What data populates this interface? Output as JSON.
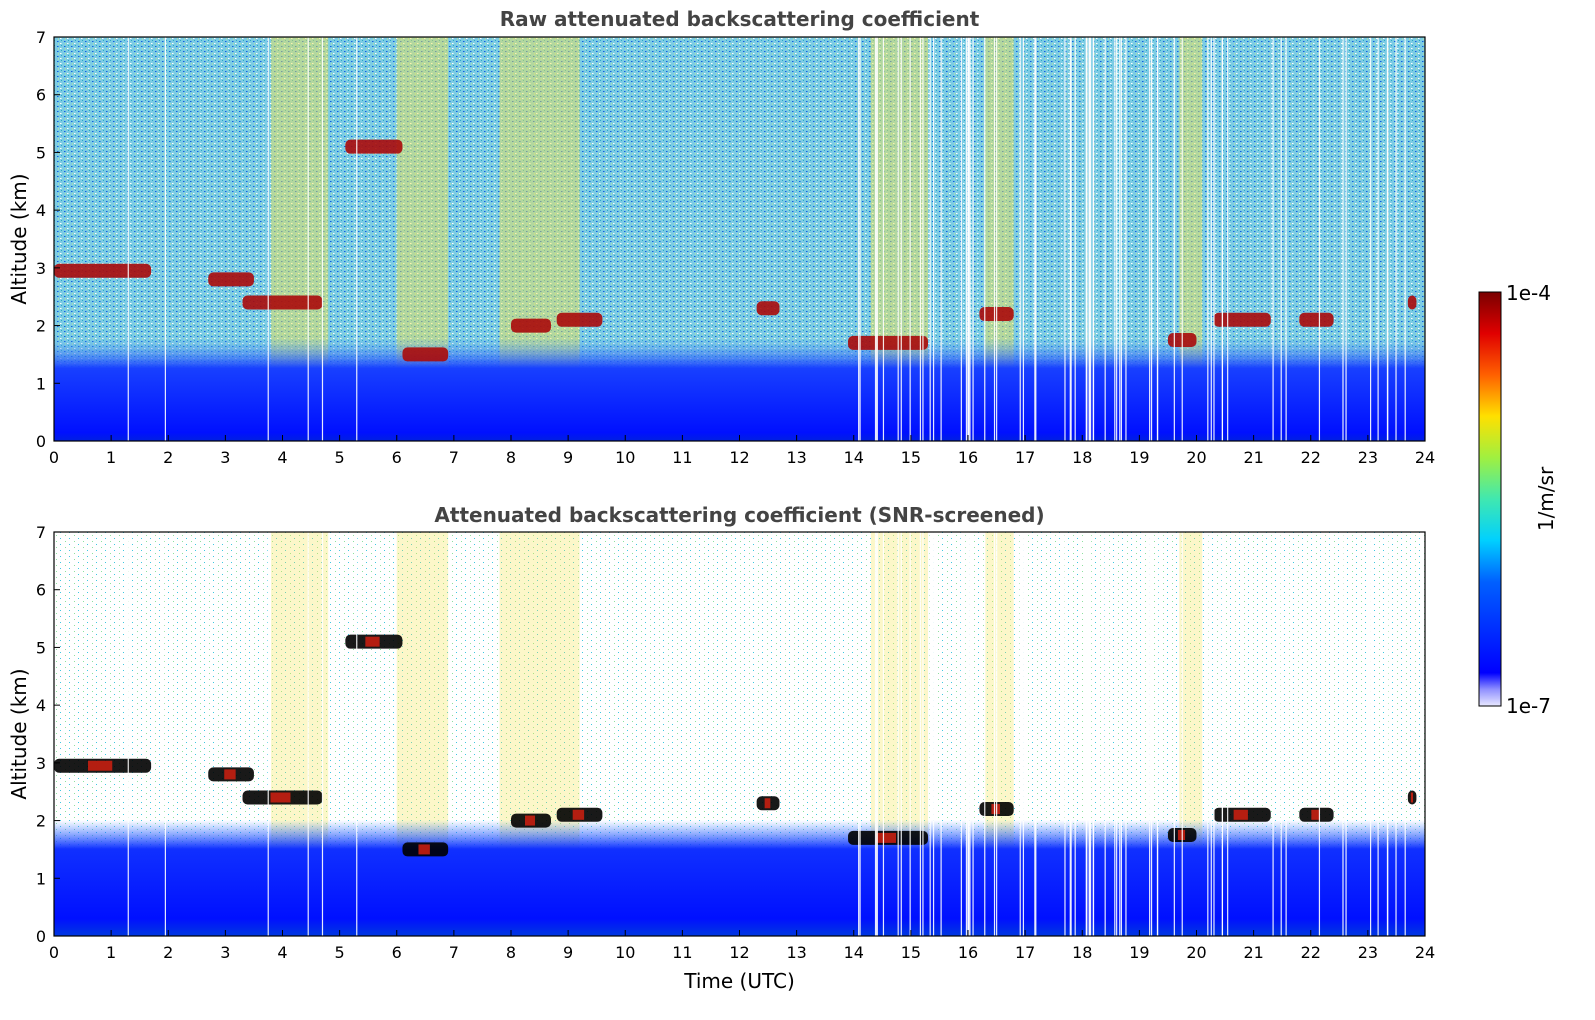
{
  "colors": {
    "background_noise": "#6ec6e0",
    "surface_layer": "#0010ff",
    "aerosol": "#f4e44c",
    "cloud": "#aa0a0a",
    "cloud_screened": "#000000"
  },
  "chart_data": [
    {
      "type": "heatmap",
      "title": "Raw attenuated backscattering coefficient",
      "xlabel": "",
      "ylabel": "Altitude (km)",
      "xlim": [
        0,
        24
      ],
      "ylim": [
        0,
        7
      ],
      "xticks": [
        "0",
        "1",
        "2",
        "3",
        "4",
        "5",
        "6",
        "7",
        "8",
        "9",
        "10",
        "11",
        "12",
        "13",
        "14",
        "15",
        "16",
        "17",
        "18",
        "19",
        "20",
        "21",
        "22",
        "23",
        "24"
      ],
      "yticks": [
        "0",
        "1",
        "2",
        "3",
        "4",
        "5",
        "6",
        "7"
      ],
      "cloud_layers": [
        {
          "t0": 0.0,
          "t1": 1.7,
          "z": 2.95
        },
        {
          "t0": 2.7,
          "t1": 3.5,
          "z": 2.8
        },
        {
          "t0": 3.3,
          "t1": 4.7,
          "z": 2.4
        },
        {
          "t0": 5.1,
          "t1": 6.1,
          "z": 5.1
        },
        {
          "t0": 6.1,
          "t1": 6.9,
          "z": 1.5
        },
        {
          "t0": 8.0,
          "t1": 8.7,
          "z": 2.0
        },
        {
          "t0": 8.8,
          "t1": 9.6,
          "z": 2.1
        },
        {
          "t0": 12.3,
          "t1": 12.7,
          "z": 2.3
        },
        {
          "t0": 13.9,
          "t1": 15.3,
          "z": 1.7
        },
        {
          "t0": 16.2,
          "t1": 16.8,
          "z": 2.2
        },
        {
          "t0": 19.5,
          "t1": 20.0,
          "z": 1.75
        },
        {
          "t0": 20.3,
          "t1": 21.3,
          "z": 2.1
        },
        {
          "t0": 21.8,
          "t1": 22.4,
          "z": 2.1
        },
        {
          "t0": 23.7,
          "t1": 23.85,
          "z": 2.4
        }
      ],
      "aerosol_plumes": [
        {
          "t0": 3.8,
          "t1": 4.8
        },
        {
          "t0": 6.0,
          "t1": 6.9
        },
        {
          "t0": 7.8,
          "t1": 9.2
        },
        {
          "t0": 14.3,
          "t1": 15.3
        },
        {
          "t0": 16.3,
          "t1": 16.8
        },
        {
          "t0": 19.7,
          "t1": 20.1
        }
      ]
    },
    {
      "type": "heatmap",
      "title": "Attenuated backscattering coefficient (SNR-screened)",
      "xlabel": "Time (UTC)",
      "ylabel": "Altitude (km)",
      "xlim": [
        0,
        24
      ],
      "ylim": [
        0,
        7
      ],
      "xticks": [
        "0",
        "1",
        "2",
        "3",
        "4",
        "5",
        "6",
        "7",
        "8",
        "9",
        "10",
        "11",
        "12",
        "13",
        "14",
        "15",
        "16",
        "17",
        "18",
        "19",
        "20",
        "21",
        "22",
        "23",
        "24"
      ],
      "yticks": [
        "0",
        "1",
        "2",
        "3",
        "4",
        "5",
        "6",
        "7"
      ]
    }
  ],
  "colorbar": {
    "max_label": "1e-4",
    "min_label": "1e-7",
    "unit_label": "1/m/sr",
    "vmin": 1e-07,
    "vmax": 0.0001,
    "scale": "log",
    "colormap": "jet"
  }
}
